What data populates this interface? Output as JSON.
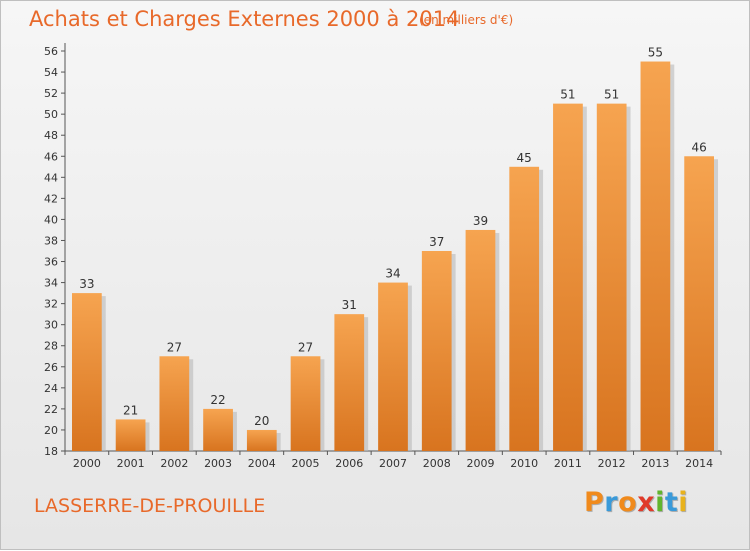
{
  "chart_data": {
    "type": "bar",
    "title": "Achats et Charges Externes 2000 à 2014",
    "unit_note": "(en milliers d'€)",
    "categories": [
      "2000",
      "2001",
      "2002",
      "2003",
      "2004",
      "2005",
      "2006",
      "2007",
      "2008",
      "2009",
      "2010",
      "2011",
      "2012",
      "2013",
      "2014"
    ],
    "values": [
      33,
      21,
      27,
      22,
      20,
      27,
      31,
      34,
      37,
      39,
      45,
      51,
      51,
      55,
      46
    ],
    "xlabel": "",
    "ylabel": "",
    "ylim": [
      18,
      56
    ],
    "yticks": [
      18,
      20,
      22,
      24,
      26,
      28,
      30,
      32,
      34,
      36,
      38,
      40,
      42,
      44,
      46,
      48,
      50,
      52,
      54,
      56
    ],
    "grid": false,
    "data_labels": true,
    "bar_color_top": "#f6a450",
    "bar_color_bottom": "#d8741f",
    "bar_shadow_color": "#b9b9b9"
  },
  "footer": {
    "commune": "LASSERRE-DE-PROUILLE",
    "logo_letters": [
      "P",
      "r",
      "o",
      "x",
      "i",
      "t",
      "i"
    ],
    "logo_colors": [
      "#f08a1c",
      "#3a9ad9",
      "#f08a1c",
      "#e03a2a",
      "#62b52e",
      "#3a9ad9",
      "#e8b21c"
    ]
  },
  "colors": {
    "accent": "#e8692a"
  }
}
